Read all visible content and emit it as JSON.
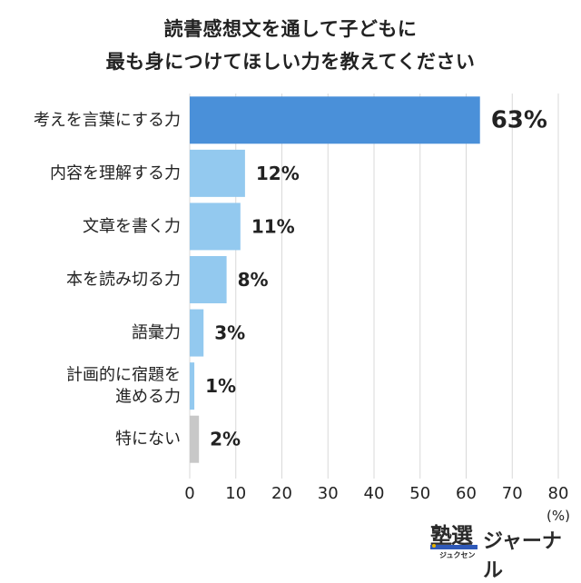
{
  "title_line1": "読書感想文を通して子どもに",
  "title_line2": "最も身につけてほしい力を教えてください",
  "chart_data": {
    "type": "bar",
    "orientation": "horizontal",
    "categories": [
      [
        "考えを言葉にする力"
      ],
      [
        "内容を理解する力"
      ],
      [
        "文章を書く力"
      ],
      [
        "本を読み切る力"
      ],
      [
        "語彙力"
      ],
      [
        "計画的に宿題を",
        "進める力"
      ],
      [
        "特にない"
      ]
    ],
    "values": [
      63,
      12,
      11,
      8,
      3,
      1,
      2
    ],
    "value_labels": [
      "63%",
      "12%",
      "11%",
      "8%",
      "3%",
      "1%",
      "2%"
    ],
    "colors": [
      "#4a90d9",
      "#93c9ef",
      "#93c9ef",
      "#93c9ef",
      "#93c9ef",
      "#93c9ef",
      "#c8c8c8"
    ],
    "xlim": [
      0,
      80
    ],
    "xticks": [
      0,
      10,
      20,
      30,
      40,
      50,
      60,
      70,
      80
    ],
    "xunit": "(%)",
    "grid": true
  },
  "logo": {
    "main": "塾選",
    "sub": "ジュクセン",
    "right": "ジャーナル",
    "bar_color": "#2f59b8"
  }
}
